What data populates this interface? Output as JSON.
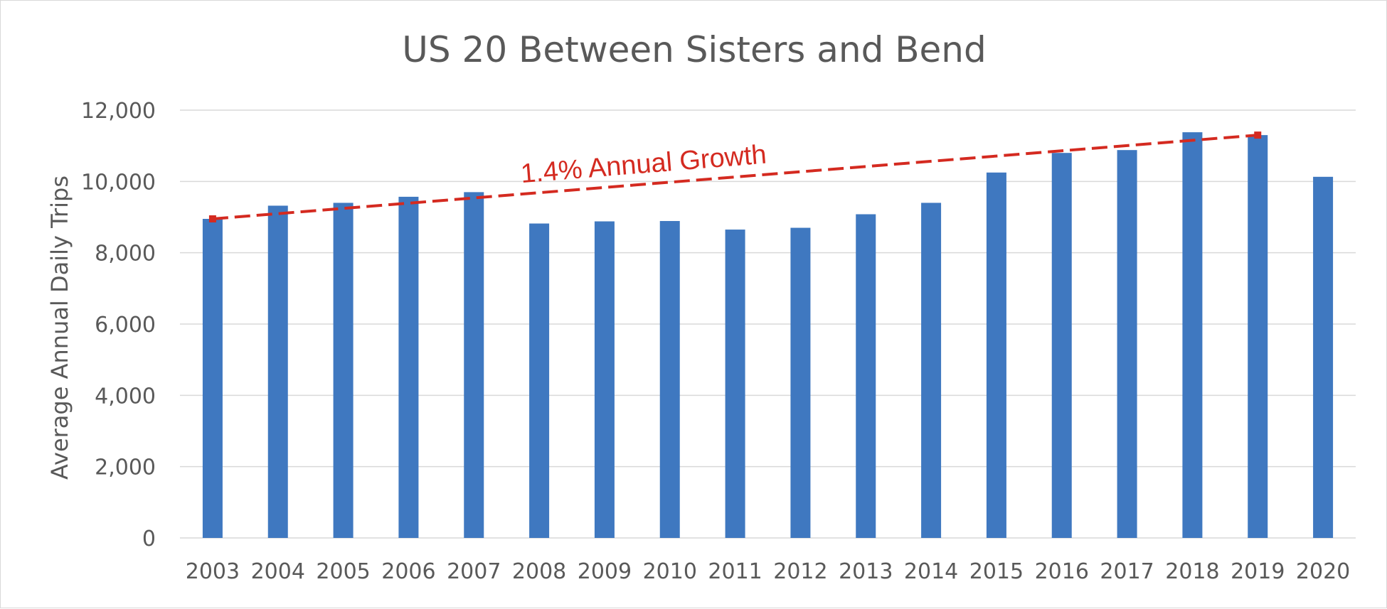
{
  "chart_data": {
    "type": "bar",
    "title": "US 20 Between Sisters and Bend",
    "xlabel": "",
    "ylabel": "Average Annual Daily Trips",
    "ylim": [
      0,
      12000
    ],
    "yticks": [
      0,
      2000,
      4000,
      6000,
      8000,
      10000,
      12000
    ],
    "ytick_labels": [
      "0",
      "2,000",
      "4,000",
      "6,000",
      "8,000",
      "10,000",
      "12,000"
    ],
    "grid": true,
    "legend": "none",
    "bar_color": "#3f78c0",
    "categories": [
      "2003",
      "2004",
      "2005",
      "2006",
      "2007",
      "2008",
      "2009",
      "2010",
      "2011",
      "2012",
      "2013",
      "2014",
      "2015",
      "2016",
      "2017",
      "2018",
      "2019",
      "2020"
    ],
    "values": [
      8950,
      9320,
      9400,
      9570,
      9700,
      8820,
      8880,
      8890,
      8650,
      8700,
      9080,
      9400,
      10250,
      10800,
      10880,
      11380,
      11300,
      10130
    ],
    "trendline": {
      "label": "1.4% Annual Growth",
      "color": "#d42a20",
      "style": "dashed",
      "start": {
        "x": "2003",
        "y": 8950
      },
      "end": {
        "x": "2019",
        "y": 11300
      }
    }
  }
}
